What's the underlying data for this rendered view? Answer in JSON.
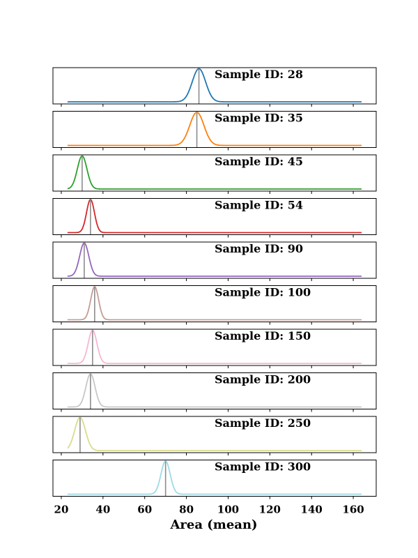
{
  "chart_data": {
    "type": "line",
    "description_kind": "stacked density panels with peak markers",
    "xlabel": "Area (mean)",
    "xlim": [
      16,
      171
    ],
    "x_ticks": [
      20,
      40,
      60,
      80,
      100,
      120,
      140,
      160
    ],
    "x_range_of_curves": [
      23,
      164
    ],
    "legend": "none",
    "grid": false,
    "series": [
      {
        "name": "Sample ID: 28",
        "mean": 86,
        "sd": 3.2,
        "color": "#1f77b4"
      },
      {
        "name": "Sample ID: 35",
        "mean": 85,
        "sd": 3.4,
        "color": "#ff7f0e"
      },
      {
        "name": "Sample ID: 45",
        "mean": 30,
        "sd": 2.3,
        "color": "#2ca02c"
      },
      {
        "name": "Sample ID: 54",
        "mean": 34,
        "sd": 1.9,
        "color": "#d62728"
      },
      {
        "name": "Sample ID: 90",
        "mean": 31,
        "sd": 2.2,
        "color": "#9467bd"
      },
      {
        "name": "Sample ID: 100",
        "mean": 36,
        "sd": 1.9,
        "color": "#c49c94"
      },
      {
        "name": "Sample ID: 150",
        "mean": 35,
        "sd": 2.1,
        "color": "#f7b6d2"
      },
      {
        "name": "Sample ID: 200",
        "mean": 34,
        "sd": 2.2,
        "color": "#c7c7c7"
      },
      {
        "name": "Sample ID: 250",
        "mean": 29,
        "sd": 2.6,
        "color": "#dbdb8d"
      },
      {
        "name": "Sample ID: 300",
        "mean": 70,
        "sd": 2.2,
        "color": "#9edae5"
      }
    ]
  }
}
